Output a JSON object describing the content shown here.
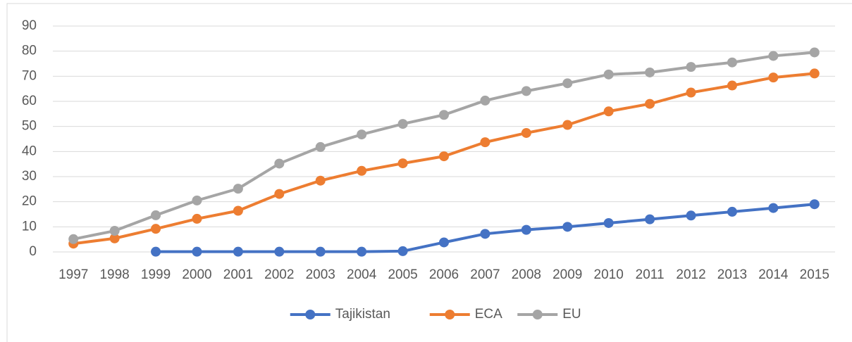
{
  "chart_data": {
    "type": "line",
    "categories": [
      "1997",
      "1998",
      "1999",
      "2000",
      "2001",
      "2002",
      "2003",
      "2004",
      "2005",
      "2006",
      "2007",
      "2008",
      "2009",
      "2010",
      "2011",
      "2012",
      "2013",
      "2014",
      "2015"
    ],
    "series": [
      {
        "name": "Tajikistan",
        "color": "#4472c4",
        "values": [
          null,
          null,
          0.1,
          0.1,
          0.1,
          0.1,
          0.1,
          0.1,
          0.3,
          3.8,
          7.2,
          8.8,
          10,
          11.5,
          13,
          14.5,
          16,
          17.5,
          19
        ]
      },
      {
        "name": "ECA",
        "color": "#ed7d31",
        "values": [
          3.3,
          5.4,
          9.2,
          13.2,
          16.4,
          23.1,
          28.4,
          32.3,
          35.3,
          38.1,
          43.7,
          47.4,
          50.6,
          56,
          59,
          63.5,
          66.3,
          69.5,
          71.1
        ]
      },
      {
        "name": "EU",
        "color": "#a5a5a5",
        "values": [
          5.1,
          8.4,
          14.6,
          20.5,
          25.2,
          35.2,
          41.8,
          46.8,
          51,
          54.6,
          60.3,
          64.1,
          67.2,
          70.7,
          71.5,
          73.7,
          75.5,
          78.1,
          79.5
        ]
      }
    ],
    "ylim": [
      0,
      90
    ],
    "yticks": [
      0,
      10,
      20,
      30,
      40,
      50,
      60,
      70,
      80,
      90
    ],
    "grid": true,
    "legend": "bottom"
  }
}
